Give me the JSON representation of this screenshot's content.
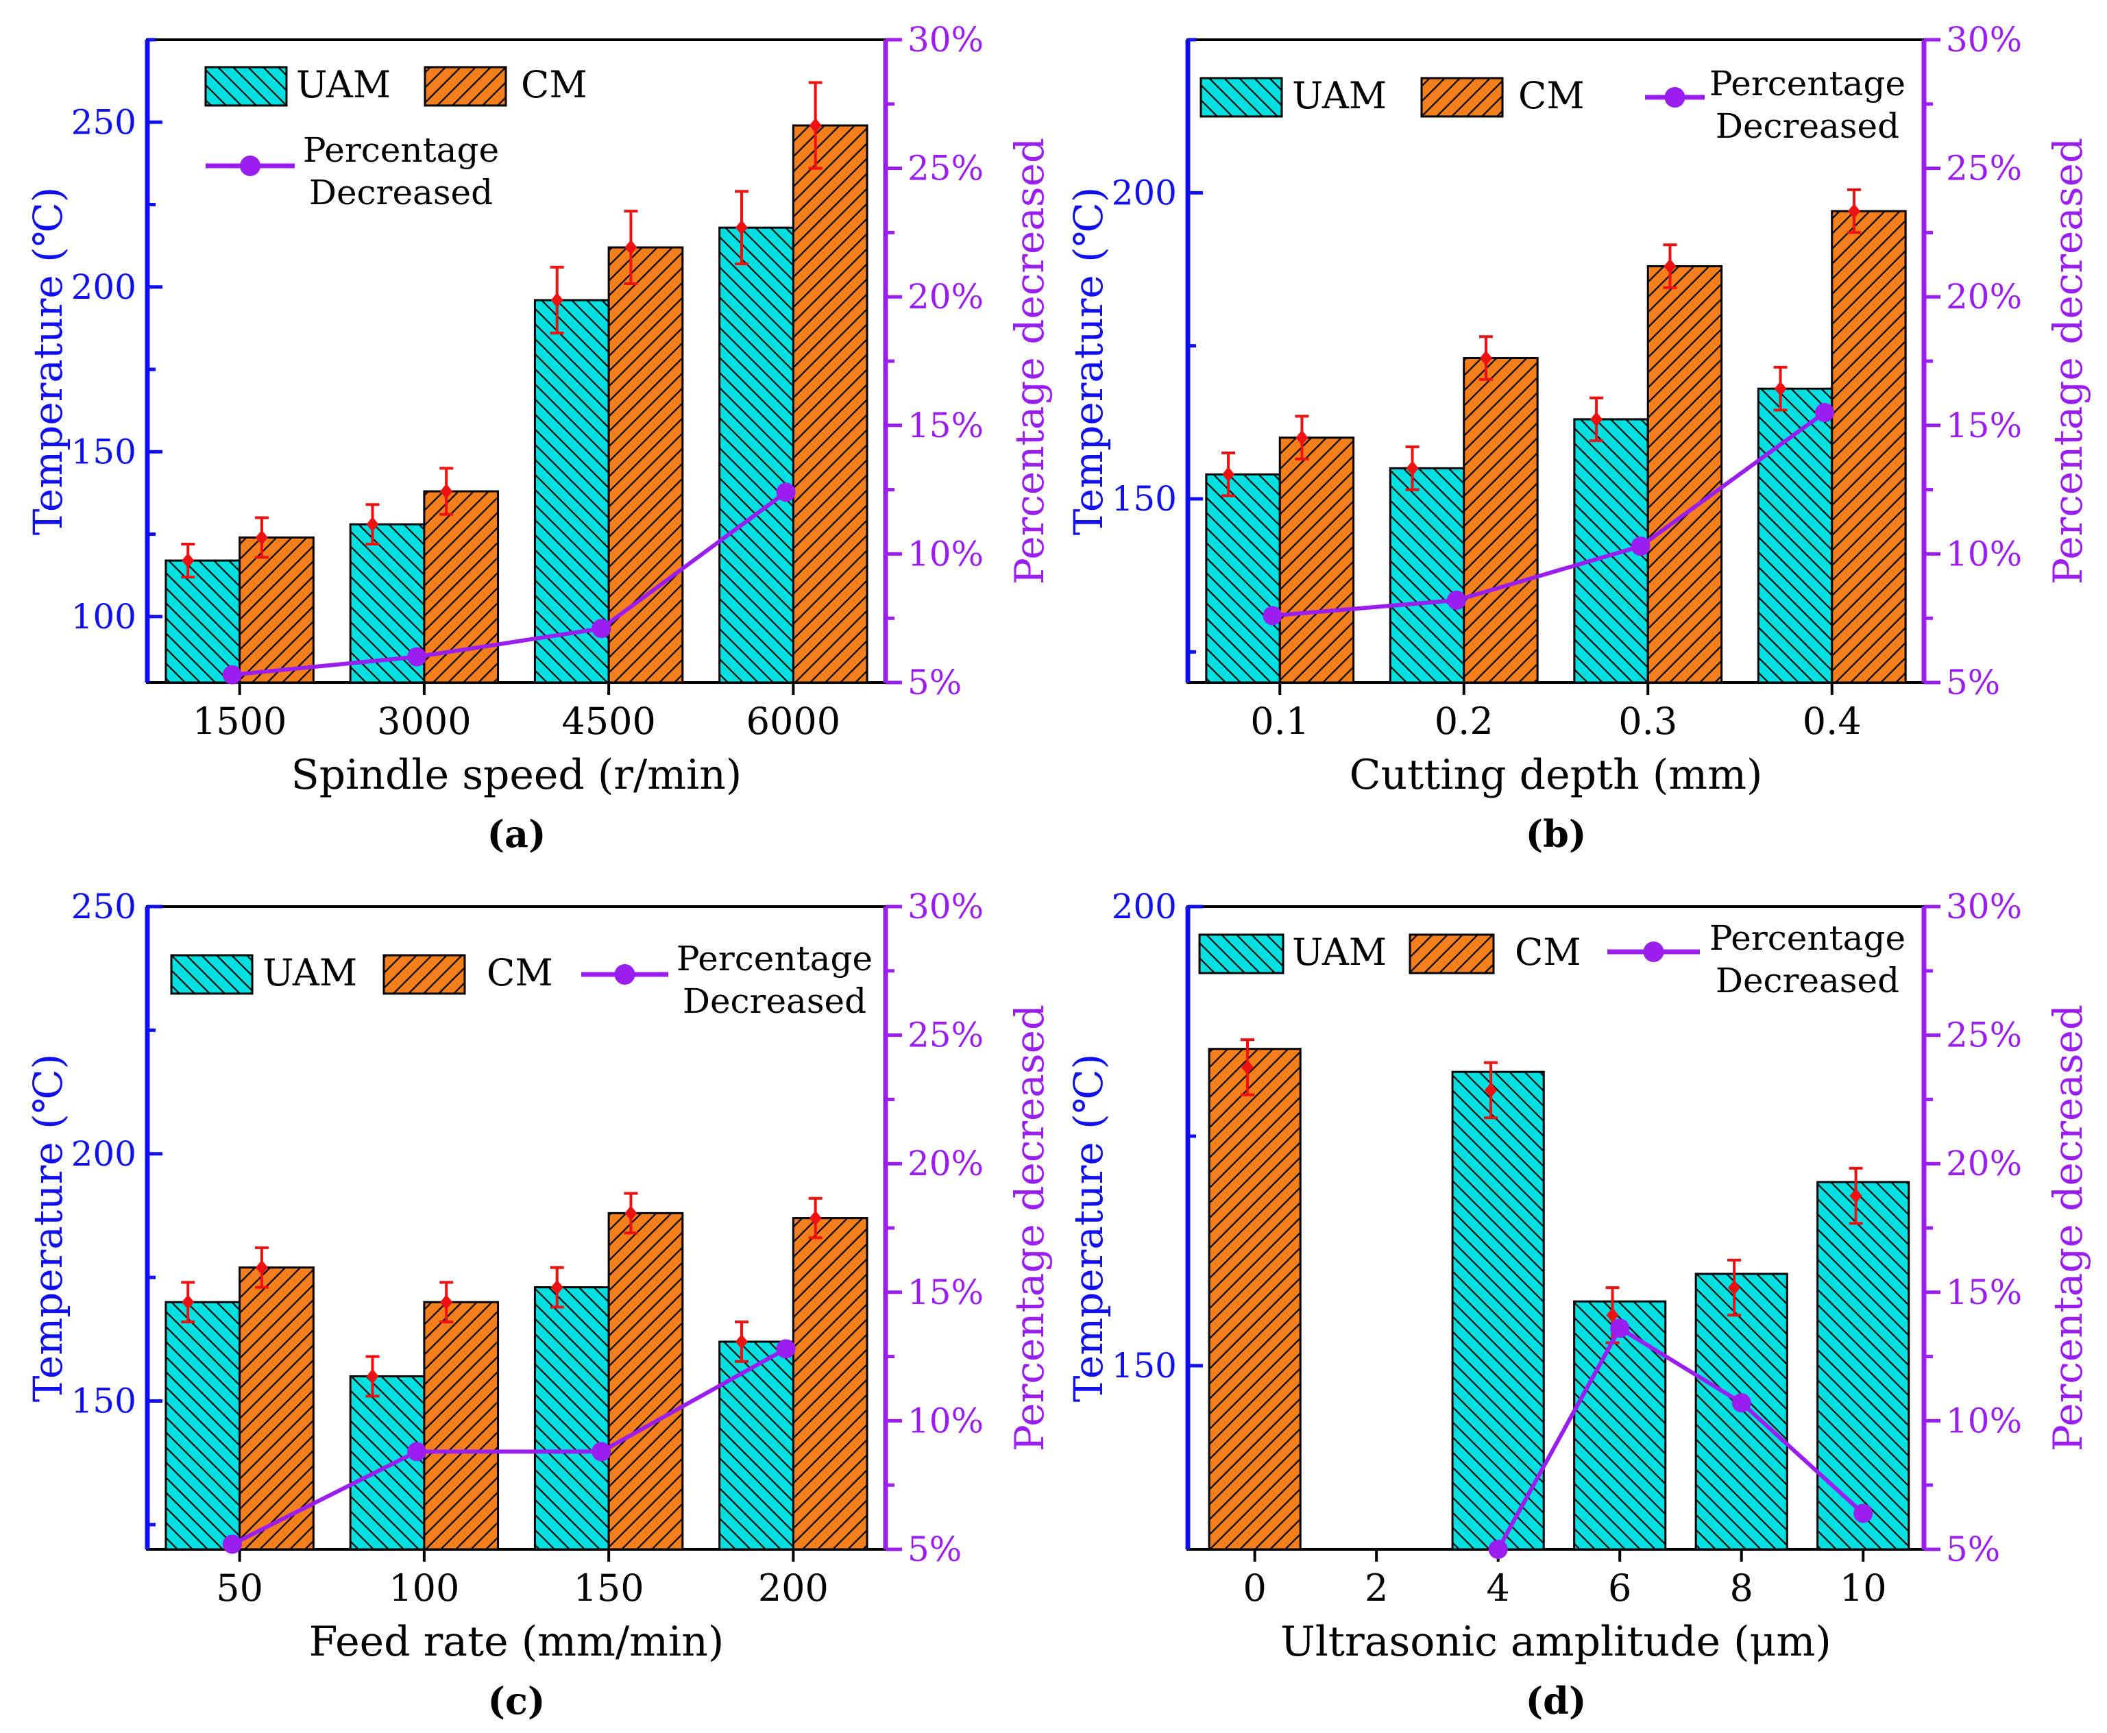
{
  "figure": {
    "series_names": {
      "uam": "UAM",
      "cm": "CM"
    },
    "line_label_lines": [
      "Percentage",
      "Decreased"
    ],
    "y_left_label": "Temperature (℃)",
    "y_right_label": "Percentage decreased",
    "colors": {
      "uam": "#00E0E0",
      "cm": "#F27F1B",
      "line": "#9B1EF0",
      "left_axis": "#1010EE",
      "right_axis": "#9B1EF0",
      "error": "#EE1111",
      "ink": "#000000"
    }
  },
  "chart_data": [
    {
      "type": "bar",
      "panel": "(a)",
      "xlabel": "Spindle speed (r/min)",
      "ylabel": "Temperature (℃)",
      "y2label": "Percentage decreased",
      "categories": [
        "1500",
        "3000",
        "4500",
        "6000"
      ],
      "ylim": [
        80,
        275
      ],
      "yticks": [
        100,
        150,
        200,
        250
      ],
      "y2lim": [
        5,
        30
      ],
      "y2ticks": [
        "5%",
        "10%",
        "15%",
        "20%",
        "25%",
        "30%"
      ],
      "legend": "top-left",
      "series": [
        {
          "name": "UAM",
          "values": [
            117,
            128,
            196,
            218
          ],
          "markers": [
            117,
            128,
            196,
            218
          ],
          "errors": [
            5,
            6,
            10,
            11
          ]
        },
        {
          "name": "CM",
          "values": [
            124,
            138,
            212,
            249
          ],
          "markers": [
            124,
            138,
            212,
            249
          ],
          "errors": [
            6,
            7,
            11,
            13
          ]
        }
      ],
      "line": {
        "name": "Percentage Decreased",
        "values": [
          5.3,
          6.0,
          7.1,
          12.4
        ]
      }
    },
    {
      "type": "bar",
      "panel": "(b)",
      "xlabel": "Cutting depth (mm)",
      "ylabel": "Temperature (℃)",
      "y2label": "Percentage decreased",
      "categories": [
        "0.1",
        "0.2",
        "0.3",
        "0.4"
      ],
      "ylim": [
        120,
        225
      ],
      "yticks": [
        150,
        200
      ],
      "y2lim": [
        5,
        30
      ],
      "y2ticks": [
        "5%",
        "10%",
        "15%",
        "20%",
        "25%",
        "30%"
      ],
      "legend": "top",
      "series": [
        {
          "name": "UAM",
          "values": [
            154,
            155,
            163,
            168
          ],
          "markers": [
            154,
            155,
            163,
            168
          ],
          "errors": [
            3.5,
            3.5,
            3.5,
            3.5
          ]
        },
        {
          "name": "CM",
          "values": [
            160,
            173,
            188,
            197
          ],
          "markers": [
            160,
            173,
            188,
            197
          ],
          "errors": [
            3.5,
            3.5,
            3.5,
            3.5
          ]
        }
      ],
      "line": {
        "name": "Percentage Decreased",
        "values": [
          7.6,
          8.2,
          10.3,
          15.5
        ]
      }
    },
    {
      "type": "bar",
      "panel": "(c)",
      "xlabel": "Feed rate  (mm/min)",
      "ylabel": "Temperature (℃)",
      "y2label": "Percentage decreased",
      "categories": [
        "50",
        "100",
        "150",
        "200"
      ],
      "ylim": [
        120,
        250
      ],
      "yticks": [
        150,
        200,
        250
      ],
      "y2lim": [
        5,
        30
      ],
      "y2ticks": [
        "5%",
        "10%",
        "15%",
        "20%",
        "25%",
        "30%"
      ],
      "legend": "top",
      "series": [
        {
          "name": "UAM",
          "values": [
            170,
            155,
            173,
            162
          ],
          "markers": [
            170,
            155,
            173,
            162
          ],
          "errors": [
            4,
            4,
            4,
            4
          ]
        },
        {
          "name": "CM",
          "values": [
            177,
            170,
            188,
            187
          ],
          "markers": [
            177,
            170,
            188,
            187
          ],
          "errors": [
            4,
            4,
            4,
            4
          ]
        }
      ],
      "line": {
        "name": "Percentage Decreased",
        "values": [
          5.2,
          8.8,
          8.8,
          12.8
        ]
      }
    },
    {
      "type": "bar",
      "panel": "(d)",
      "xlabel": "Ultrasonic amplitude (μm)",
      "ylabel": "Temperature (℃)",
      "y2label": "Percentage decreased",
      "categories": [
        "0",
        "2",
        "4",
        "6",
        "8",
        "10"
      ],
      "ylim": [
        130,
        200
      ],
      "yticks": [
        150,
        200
      ],
      "y2lim": [
        5,
        30
      ],
      "y2ticks": [
        "5%",
        "10%",
        "15%",
        "20%",
        "25%",
        "30%"
      ],
      "legend": "top",
      "bars": [
        {
          "x": "0",
          "series": "CM",
          "value": 184.5,
          "marker": 182.5,
          "error": 3
        },
        {
          "x": "4",
          "series": "UAM",
          "value": 182,
          "marker": 180,
          "error": 3
        },
        {
          "x": "6",
          "series": "UAM",
          "value": 157,
          "marker": 155.5,
          "error": 3
        },
        {
          "x": "8",
          "series": "UAM",
          "value": 160,
          "marker": 158.5,
          "error": 3
        },
        {
          "x": "10",
          "series": "UAM",
          "value": 170,
          "marker": 168.5,
          "error": 3
        }
      ],
      "line": {
        "name": "Percentage Decreased",
        "x": [
          "4",
          "6",
          "8",
          "10"
        ],
        "values": [
          5.0,
          13.6,
          10.7,
          6.4
        ]
      }
    }
  ]
}
